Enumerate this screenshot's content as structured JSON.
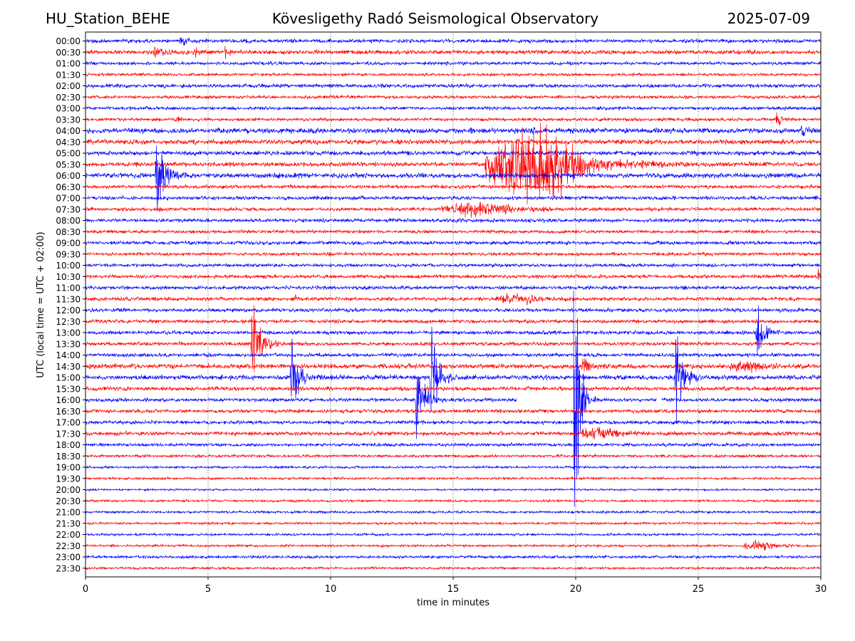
{
  "header": {
    "station": "HU_Station_BEHE",
    "observatory": "Kövesligethy Radó Seismological Observatory",
    "date": "2025-07-09"
  },
  "chart_data": {
    "type": "line",
    "title": "Kövesligethy Radó Seismological Observatory",
    "xlabel": "time in minutes",
    "ylabel": "UTC (local time = UTC + 02:00)",
    "xlim": [
      0,
      30
    ],
    "x_ticks": [
      0,
      5,
      10,
      15,
      20,
      25,
      30
    ],
    "grid": "vertical dotted lines at 5-minute ticks",
    "colors": {
      "even_rows": "#0000ff",
      "odd_rows": "#ff0000"
    },
    "rows": [
      "00:00",
      "00:30",
      "01:00",
      "01:30",
      "02:00",
      "02:30",
      "03:00",
      "03:30",
      "04:00",
      "04:30",
      "05:00",
      "05:30",
      "06:00",
      "06:30",
      "07:00",
      "07:30",
      "08:00",
      "08:30",
      "09:00",
      "09:30",
      "10:00",
      "10:30",
      "11:00",
      "11:30",
      "12:00",
      "12:30",
      "13:00",
      "13:30",
      "14:00",
      "14:30",
      "15:00",
      "15:30",
      "16:00",
      "16:30",
      "17:00",
      "17:30",
      "18:00",
      "18:30",
      "19:00",
      "19:30",
      "20:00",
      "20:30",
      "21:00",
      "21:30",
      "22:00",
      "22:30",
      "23:00",
      "23:30"
    ],
    "noise_levels": [
      0.9,
      1.0,
      0.8,
      0.7,
      0.9,
      0.8,
      0.8,
      0.8,
      1.3,
      1.2,
      1.1,
      1.1,
      1.2,
      0.9,
      0.9,
      0.9,
      0.9,
      0.8,
      0.9,
      0.8,
      0.8,
      0.9,
      0.9,
      0.9,
      0.9,
      0.9,
      0.9,
      0.9,
      0.9,
      1.2,
      1.2,
      1.0,
      0.9,
      0.9,
      0.9,
      1.0,
      0.8,
      0.7,
      0.6,
      0.6,
      0.5,
      0.6,
      0.6,
      0.6,
      0.6,
      0.6,
      0.7,
      0.6
    ],
    "events": [
      {
        "row": "00:00",
        "minute": 3.9,
        "amplitude": 4,
        "duration": 0.6
      },
      {
        "row": "00:30",
        "minute": 2.8,
        "amplitude": 4,
        "duration": 1.0
      },
      {
        "row": "00:30",
        "minute": 4.5,
        "amplitude": 4,
        "duration": 0.3
      },
      {
        "row": "00:30",
        "minute": 5.7,
        "amplitude": 4,
        "duration": 0.5
      },
      {
        "row": "03:30",
        "minute": 3.8,
        "amplitude": 4,
        "duration": 0.2
      },
      {
        "row": "03:30",
        "minute": 28.2,
        "amplitude": 6,
        "duration": 0.5
      },
      {
        "row": "04:00",
        "minute": 18.2,
        "amplitude": 4,
        "duration": 0.5
      },
      {
        "row": "04:00",
        "minute": 29.2,
        "amplitude": 5,
        "duration": 0.4
      },
      {
        "row": "05:30",
        "minute": 18.3,
        "amplitude": 34,
        "duration": 4.0
      },
      {
        "row": "06:00",
        "minute": 2.9,
        "amplitude": 45,
        "duration": 0.8
      },
      {
        "row": "07:30",
        "minute": 16.0,
        "amplitude": 6,
        "duration": 3.0
      },
      {
        "row": "10:30",
        "minute": 29.9,
        "amplitude": 5,
        "duration": 0.4
      },
      {
        "row": "11:30",
        "minute": 8.5,
        "amplitude": 6,
        "duration": 0.3
      },
      {
        "row": "11:30",
        "minute": 17.6,
        "amplitude": 4,
        "duration": 1.8
      },
      {
        "row": "13:00",
        "minute": 27.4,
        "amplitude": 25,
        "duration": 0.7
      },
      {
        "row": "13:30",
        "minute": 6.8,
        "amplitude": 48,
        "duration": 0.8
      },
      {
        "row": "14:30",
        "minute": 20.3,
        "amplitude": 6,
        "duration": 0.8
      },
      {
        "row": "14:30",
        "minute": 27.0,
        "amplitude": 4,
        "duration": 1.5
      },
      {
        "row": "15:00",
        "minute": 8.4,
        "amplitude": 32,
        "duration": 0.7
      },
      {
        "row": "15:00",
        "minute": 14.1,
        "amplitude": 45,
        "duration": 0.7
      },
      {
        "row": "15:00",
        "minute": 24.1,
        "amplitude": 48,
        "duration": 0.7
      },
      {
        "row": "16:00",
        "minute": 13.5,
        "amplitude": 45,
        "duration": 0.7
      },
      {
        "row": "16:00",
        "minute": 19.9,
        "amplitude": 225,
        "duration": 0.5
      },
      {
        "row": "17:30",
        "minute": 21.0,
        "amplitude": 6,
        "duration": 1.5
      },
      {
        "row": "22:30",
        "minute": 27.5,
        "amplitude": 4,
        "duration": 1.3
      }
    ],
    "data_gaps": [
      {
        "row": "16:00",
        "from_minute": 17.6,
        "to_minute": 19.9
      },
      {
        "row": "16:00",
        "from_minute": 23.3,
        "to_minute": 23.5
      }
    ]
  }
}
